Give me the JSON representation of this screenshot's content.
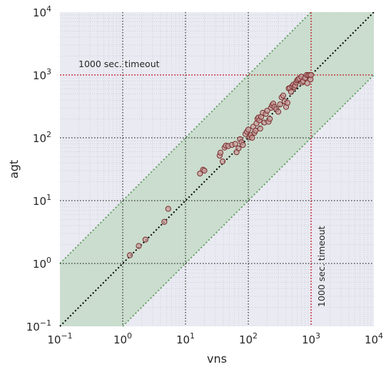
{
  "chart_data": {
    "type": "scatter",
    "title": "",
    "xlabel": "vns",
    "ylabel": "agt",
    "xscale": "log",
    "yscale": "log",
    "xlim": [
      0.1,
      10000
    ],
    "ylim": [
      0.1,
      10000
    ],
    "xticks": [
      {
        "value": 0.1,
        "base": "10",
        "exp": "−1"
      },
      {
        "value": 1,
        "base": "10",
        "exp": "0"
      },
      {
        "value": 10,
        "base": "10",
        "exp": "1"
      },
      {
        "value": 100,
        "base": "10",
        "exp": "2"
      },
      {
        "value": 1000,
        "base": "10",
        "exp": "3"
      },
      {
        "value": 10000,
        "base": "10",
        "exp": "4"
      }
    ],
    "yticks": [
      {
        "value": 0.1,
        "base": "10",
        "exp": "−1"
      },
      {
        "value": 1,
        "base": "10",
        "exp": "0"
      },
      {
        "value": 10,
        "base": "10",
        "exp": "1"
      },
      {
        "value": 100,
        "base": "10",
        "exp": "2"
      },
      {
        "value": 1000,
        "base": "10",
        "exp": "3"
      },
      {
        "value": 10000,
        "base": "10",
        "exp": "4"
      }
    ],
    "grid": true,
    "diagonal": "y = x",
    "band": {
      "lower_factor": 0.1,
      "upper_factor": 10,
      "color": "#c8dccb",
      "edge_color": "#5a9a5a"
    },
    "timeout": {
      "value": 1000,
      "color": "#c0182a"
    },
    "annotations": {
      "horizontal_timeout": "1000 sec. timeout",
      "vertical_timeout": "1000 sec. timeout"
    },
    "colors": {
      "background": "#eaeaf2",
      "point_fill": "#c89a9a",
      "point_edge": "#7a2e2e",
      "grid": "#000000"
    },
    "points": [
      [
        1.3,
        1.35
      ],
      [
        1.8,
        1.9
      ],
      [
        2.3,
        2.4
      ],
      [
        4.6,
        4.6
      ],
      [
        5.3,
        7.4
      ],
      [
        17,
        27
      ],
      [
        19,
        31
      ],
      [
        20,
        30
      ],
      [
        35,
        52
      ],
      [
        36,
        58
      ],
      [
        39,
        42
      ],
      [
        42,
        70
      ],
      [
        44,
        75
      ],
      [
        48,
        74
      ],
      [
        55,
        77
      ],
      [
        62,
        80
      ],
      [
        65,
        59
      ],
      [
        70,
        68
      ],
      [
        74,
        95
      ],
      [
        78,
        85
      ],
      [
        82,
        77
      ],
      [
        90,
        115
      ],
      [
        95,
        125
      ],
      [
        100,
        135
      ],
      [
        105,
        102
      ],
      [
        110,
        110
      ],
      [
        115,
        100
      ],
      [
        120,
        150
      ],
      [
        125,
        120
      ],
      [
        130,
        130
      ],
      [
        135,
        170
      ],
      [
        140,
        200
      ],
      [
        145,
        210
      ],
      [
        150,
        190
      ],
      [
        155,
        140
      ],
      [
        160,
        215
      ],
      [
        170,
        250
      ],
      [
        180,
        175
      ],
      [
        190,
        240
      ],
      [
        200,
        270
      ],
      [
        210,
        180
      ],
      [
        220,
        200
      ],
      [
        230,
        300
      ],
      [
        240,
        330
      ],
      [
        250,
        350
      ],
      [
        260,
        310
      ],
      [
        280,
        285
      ],
      [
        300,
        260
      ],
      [
        320,
        340
      ],
      [
        340,
        440
      ],
      [
        360,
        470
      ],
      [
        380,
        380
      ],
      [
        400,
        310
      ],
      [
        420,
        360
      ],
      [
        440,
        610
      ],
      [
        460,
        620
      ],
      [
        480,
        540
      ],
      [
        500,
        660
      ],
      [
        520,
        700
      ],
      [
        540,
        640
      ],
      [
        560,
        680
      ],
      [
        580,
        760
      ],
      [
        600,
        820
      ],
      [
        620,
        850
      ],
      [
        650,
        880
      ],
      [
        700,
        940
      ],
      [
        720,
        760
      ],
      [
        750,
        800
      ],
      [
        800,
        900
      ],
      [
        850,
        1000
      ],
      [
        870,
        740
      ],
      [
        900,
        990
      ],
      [
        950,
        1000
      ],
      [
        980,
        850
      ],
      [
        1000,
        1000
      ]
    ]
  }
}
